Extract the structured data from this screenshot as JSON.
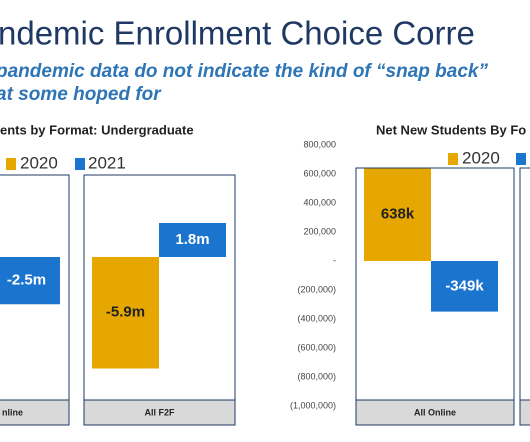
{
  "slide": {
    "title": "ndemic Enrollment Choice Corre",
    "subtitle": [
      "pandemic data do not indicate the kind of “snap back”",
      "at some hoped for"
    ]
  },
  "chart_data": [
    {
      "type": "bar",
      "title": "ents by Format: Undergraduate",
      "categories": [
        "nline",
        "All F2F"
      ],
      "series": [
        {
          "name": "2020",
          "color": "#e6a700",
          "values": [
            null,
            -5.9
          ],
          "value_labels": [
            null,
            "-5.9m"
          ]
        },
        {
          "name": "2021",
          "color": "#1b75cf",
          "values": [
            -2.5,
            1.8
          ],
          "value_labels": [
            "-2.5m",
            "1.8m"
          ]
        }
      ]
    },
    {
      "type": "bar",
      "title": "Net New Students By Fo",
      "categories": [
        "All Online",
        null
      ],
      "series": [
        {
          "name": "2020",
          "color": "#e6a700",
          "values": [
            638000,
            null
          ],
          "value_labels": [
            "638k",
            null
          ]
        },
        {
          "color": "#1b75cf",
          "values": [
            -349000,
            null
          ],
          "value_labels": [
            "-349k",
            null
          ]
        }
      ],
      "ylim": [
        -1000000,
        800000
      ],
      "yticks": [
        {
          "value": 800000,
          "label": "800,000"
        },
        {
          "value": 600000,
          "label": "600,000"
        },
        {
          "value": 400000,
          "label": "400,000"
        },
        {
          "value": 200000,
          "label": "200,000"
        },
        {
          "value": 0,
          "label": "-"
        },
        {
          "value": -200000,
          "label": "(200,000)"
        },
        {
          "value": -400000,
          "label": "(400,000)"
        },
        {
          "value": -600000,
          "label": "(600,000)"
        },
        {
          "value": -800000,
          "label": "(800,000)"
        },
        {
          "value": -1000000,
          "label": "(1,000,000)"
        }
      ]
    }
  ]
}
